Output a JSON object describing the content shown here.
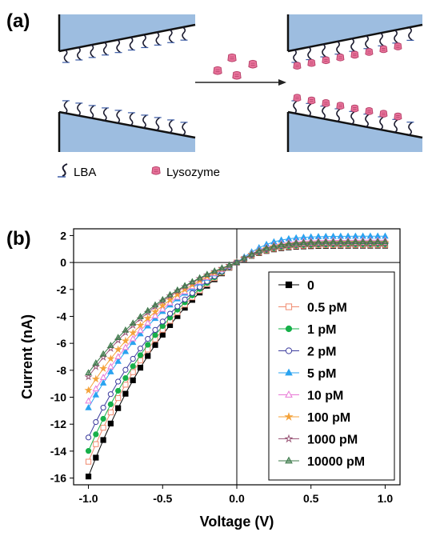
{
  "panel_a": {
    "label": "(a)",
    "legend": [
      {
        "icon": "lba-molecule-icon",
        "label": "LBA"
      },
      {
        "icon": "lysozyme-icon",
        "label": "Lysozyme"
      }
    ],
    "colors": {
      "substrate": "#9dbde0",
      "probe": "#1a1a2e",
      "lysozyme": "#e8739b",
      "lysozyme_dark": "#b9436b"
    }
  },
  "panel_b": {
    "label": "(b)"
  },
  "chart_data": {
    "type": "line",
    "xlabel": "Voltage (V)",
    "ylabel": "Current (nA)",
    "xlim": [
      -1.1,
      1.1
    ],
    "ylim": [
      -16.5,
      2.5
    ],
    "xticks": [
      -1.0,
      -0.5,
      0.0,
      0.5,
      1.0
    ],
    "xtick_labels": [
      "-1.0",
      "-0.5",
      "0.0",
      "0.5",
      "1.0"
    ],
    "yticks": [
      -16,
      -14,
      -12,
      -10,
      -8,
      -6,
      -4,
      -2,
      0,
      2
    ],
    "ytick_labels": [
      "-16",
      "-14",
      "-12",
      "-10",
      "-8",
      "-6",
      "-4",
      "-2",
      "0",
      "2"
    ],
    "legend_position": "right-lower",
    "series": [
      {
        "name": "0",
        "color": "#000000",
        "marker": "square-filled",
        "i_neg": -15.9,
        "i_pos": 1.25
      },
      {
        "name": "0.5 pM",
        "color": "#f08a6e",
        "marker": "square-open",
        "i_neg": -14.8,
        "i_pos": 1.3
      },
      {
        "name": "1 pM",
        "color": "#17b04a",
        "marker": "circle-filled",
        "i_neg": -14.0,
        "i_pos": 1.35
      },
      {
        "name": "2 pM",
        "color": "#3d3d9e",
        "marker": "circle-open",
        "i_neg": -13.0,
        "i_pos": 1.45
      },
      {
        "name": "5 pM",
        "color": "#2aa3f0",
        "marker": "triangle-filled",
        "i_neg": -10.8,
        "i_pos": 1.95
      },
      {
        "name": "10 pM",
        "color": "#e877d6",
        "marker": "triangle-open",
        "i_neg": -10.3,
        "i_pos": 1.65
      },
      {
        "name": "100 pM",
        "color": "#f4a23a",
        "marker": "star-filled",
        "i_neg": -9.5,
        "i_pos": 1.5
      },
      {
        "name": "1000 pM",
        "color": "#9c5a7a",
        "marker": "star-open",
        "i_neg": -8.5,
        "i_pos": 1.4
      },
      {
        "name": "10000 pM",
        "color": "#3c7a4a",
        "marker": "triangle-half",
        "i_neg": -8.2,
        "i_pos": 1.55
      }
    ]
  }
}
